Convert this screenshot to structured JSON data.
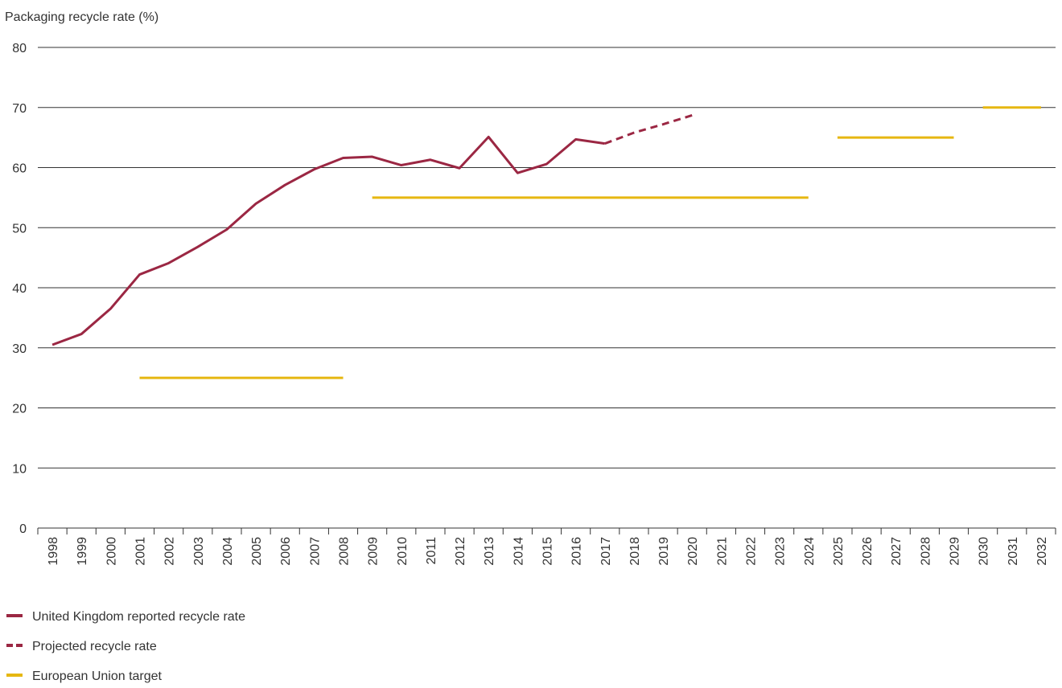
{
  "chart_data": {
    "type": "line",
    "title": "Packaging recycle rate (%)",
    "categories": [
      "1998",
      "1999",
      "2000",
      "2001",
      "2002",
      "2003",
      "2004",
      "2005",
      "2006",
      "2007",
      "2008",
      "2009",
      "2010",
      "2011",
      "2012",
      "2013",
      "2014",
      "2015",
      "2016",
      "2017",
      "2018",
      "2019",
      "2020",
      "2021",
      "2022",
      "2023",
      "2024",
      "2025",
      "2026",
      "2027",
      "2028",
      "2029",
      "2030",
      "2031",
      "2032"
    ],
    "series": [
      {
        "name": "United Kingdom reported recycle rate",
        "color": "#9b2743",
        "style": "solid",
        "values": [
          30.5,
          32.3,
          36.5,
          42.2,
          44.1,
          46.8,
          49.7,
          54,
          57.1,
          59.7,
          61.6,
          61.8,
          60.4,
          61.3,
          59.9,
          65.1,
          59.1,
          60.6,
          64.7,
          64.0,
          null,
          null,
          null,
          null,
          null,
          null,
          null,
          null,
          null,
          null,
          null,
          null,
          null,
          null,
          null
        ]
      },
      {
        "name": "Projected recycle rate",
        "color": "#9b2743",
        "style": "dashed",
        "values": [
          null,
          null,
          null,
          null,
          null,
          null,
          null,
          null,
          null,
          null,
          null,
          null,
          null,
          null,
          null,
          null,
          null,
          null,
          null,
          64.0,
          65.8,
          67.2,
          68.7,
          null,
          null,
          null,
          null,
          null,
          null,
          null,
          null,
          null,
          null,
          null,
          null
        ]
      },
      {
        "name": "European Union target",
        "color": "#e6b711",
        "style": "steps",
        "values": [
          null,
          null,
          null,
          25,
          25,
          25,
          25,
          25,
          25,
          25,
          25,
          55,
          55,
          55,
          55,
          55,
          55,
          55,
          55,
          55,
          55,
          55,
          55,
          55,
          55,
          55,
          55,
          65,
          65,
          65,
          65,
          65,
          70,
          70,
          70
        ]
      }
    ],
    "ylim": [
      0,
      80
    ],
    "yticks": [
      0,
      10,
      20,
      30,
      40,
      50,
      60,
      70,
      80
    ],
    "grid": true
  }
}
